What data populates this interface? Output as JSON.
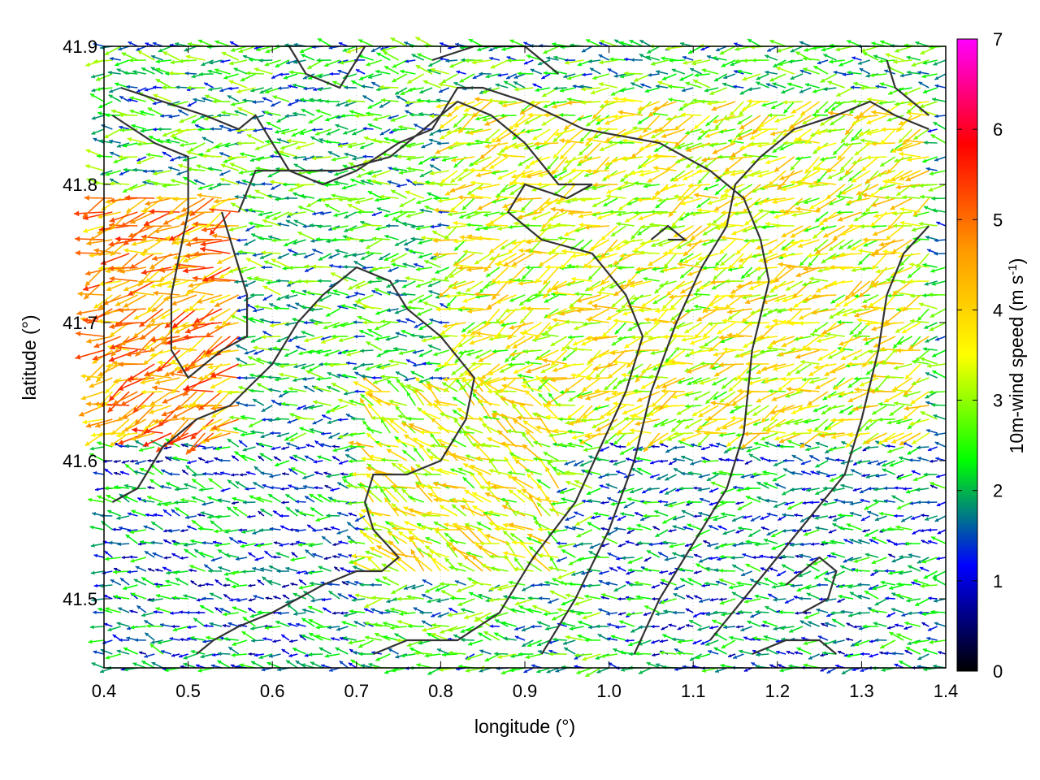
{
  "chart_data": {
    "type": "vector_field",
    "xlabel": "longitude (°)",
    "ylabel": "latitude (°)",
    "xlim": [
      0.4,
      1.4
    ],
    "ylim": [
      41.45,
      41.9
    ],
    "xticks": [
      "0.4",
      "0.5",
      "0.6",
      "0.7",
      "0.8",
      "0.9",
      "1.0",
      "1.1",
      "1.2",
      "1.3",
      "1.4"
    ],
    "xtick_values": [
      0.4,
      0.5,
      0.6,
      0.7,
      0.8,
      0.9,
      1.0,
      1.1,
      1.2,
      1.3,
      1.4
    ],
    "yticks": [
      "41.5",
      "41.6",
      "41.7",
      "41.8",
      "41.9"
    ],
    "ytick_values": [
      41.5,
      41.6,
      41.7,
      41.8,
      41.9
    ],
    "grid": true,
    "colorbar": {
      "label_main": "10m-wind speed (m s",
      "label_sup": "-1",
      "label_end": ")",
      "range": [
        0,
        7
      ],
      "ticks": [
        "0",
        "1",
        "2",
        "3",
        "4",
        "5",
        "6",
        "7"
      ],
      "tick_values": [
        0,
        1,
        2,
        3,
        4,
        5,
        6,
        7
      ],
      "palette": [
        "#000000",
        "#0000ff",
        "#00ff00",
        "#ffff00",
        "#ff9900",
        "#ff0000",
        "#ff00ff"
      ]
    },
    "contour_color": "#333333",
    "contours": [
      [
        [
          0.42,
          41.87
        ],
        [
          0.47,
          41.86
        ],
        [
          0.52,
          41.85
        ],
        [
          0.56,
          41.84
        ],
        [
          0.58,
          41.85
        ],
        [
          0.6,
          41.83
        ],
        [
          0.62,
          41.81
        ],
        [
          0.66,
          41.8
        ],
        [
          0.7,
          41.81
        ],
        [
          0.75,
          41.83
        ],
        [
          0.79,
          41.84
        ],
        [
          0.82,
          41.87
        ],
        [
          0.85,
          41.87
        ],
        [
          0.9,
          41.86
        ],
        [
          0.97,
          41.84
        ],
        [
          1.06,
          41.83
        ],
        [
          1.12,
          41.81
        ],
        [
          1.16,
          41.79
        ],
        [
          1.18,
          41.76
        ],
        [
          1.19,
          41.73
        ],
        [
          1.17,
          41.68
        ],
        [
          1.16,
          41.62
        ],
        [
          1.14,
          41.58
        ],
        [
          1.1,
          41.54
        ],
        [
          1.06,
          41.5
        ],
        [
          1.03,
          41.46
        ]
      ],
      [
        [
          0.41,
          41.85
        ],
        [
          0.46,
          41.83
        ],
        [
          0.5,
          41.82
        ],
        [
          0.5,
          41.78
        ],
        [
          0.48,
          41.72
        ],
        [
          0.48,
          41.68
        ],
        [
          0.5,
          41.66
        ],
        [
          0.54,
          41.68
        ],
        [
          0.57,
          41.69
        ],
        [
          0.57,
          41.72
        ],
        [
          0.55,
          41.76
        ],
        [
          0.54,
          41.78
        ]
      ],
      [
        [
          0.56,
          41.78
        ],
        [
          0.58,
          41.81
        ],
        [
          0.62,
          41.81
        ],
        [
          0.68,
          41.81
        ],
        [
          0.74,
          41.82
        ],
        [
          0.78,
          41.84
        ],
        [
          0.82,
          41.86
        ],
        [
          0.86,
          41.85
        ],
        [
          0.9,
          41.83
        ],
        [
          0.94,
          41.8
        ],
        [
          0.98,
          41.8
        ],
        [
          0.95,
          41.79
        ],
        [
          0.9,
          41.8
        ],
        [
          0.88,
          41.78
        ],
        [
          0.92,
          41.76
        ],
        [
          0.98,
          41.75
        ],
        [
          1.02,
          41.72
        ],
        [
          1.04,
          41.69
        ],
        [
          1.02,
          41.65
        ],
        [
          0.99,
          41.61
        ],
        [
          0.96,
          41.57
        ],
        [
          0.91,
          41.53
        ],
        [
          0.87,
          41.49
        ],
        [
          0.82,
          41.47
        ],
        [
          0.76,
          41.47
        ],
        [
          0.72,
          41.46
        ]
      ],
      [
        [
          0.41,
          41.57
        ],
        [
          0.44,
          41.58
        ],
        [
          0.47,
          41.61
        ],
        [
          0.51,
          41.63
        ],
        [
          0.55,
          41.64
        ],
        [
          0.6,
          41.67
        ],
        [
          0.63,
          41.7
        ],
        [
          0.66,
          41.72
        ],
        [
          0.7,
          41.74
        ],
        [
          0.74,
          41.73
        ],
        [
          0.76,
          41.71
        ],
        [
          0.8,
          41.69
        ],
        [
          0.84,
          41.66
        ],
        [
          0.83,
          41.63
        ],
        [
          0.8,
          41.6
        ],
        [
          0.76,
          41.59
        ],
        [
          0.72,
          41.59
        ],
        [
          0.71,
          41.57
        ],
        [
          0.72,
          41.55
        ],
        [
          0.75,
          41.53
        ],
        [
          0.73,
          41.52
        ],
        [
          0.7,
          41.52
        ],
        [
          0.66,
          41.51
        ],
        [
          0.63,
          41.5
        ],
        [
          0.6,
          41.49
        ],
        [
          0.56,
          41.48
        ],
        [
          0.53,
          41.47
        ],
        [
          0.51,
          41.46
        ]
      ],
      [
        [
          0.92,
          41.46
        ],
        [
          0.96,
          41.5
        ],
        [
          1.0,
          41.55
        ],
        [
          1.03,
          41.6
        ],
        [
          1.05,
          41.65
        ],
        [
          1.08,
          41.7
        ],
        [
          1.11,
          41.74
        ],
        [
          1.14,
          41.77
        ],
        [
          1.15,
          41.8
        ],
        [
          1.18,
          41.82
        ],
        [
          1.22,
          41.84
        ],
        [
          1.27,
          41.85
        ],
        [
          1.31,
          41.86
        ],
        [
          1.34,
          41.85
        ],
        [
          1.38,
          41.84
        ]
      ],
      [
        [
          1.12,
          41.47
        ],
        [
          1.16,
          41.5
        ],
        [
          1.2,
          41.53
        ],
        [
          1.24,
          41.56
        ],
        [
          1.28,
          41.59
        ],
        [
          1.3,
          41.63
        ],
        [
          1.32,
          41.68
        ],
        [
          1.33,
          41.72
        ],
        [
          1.35,
          41.75
        ],
        [
          1.38,
          41.77
        ]
      ],
      [
        [
          1.21,
          41.51
        ],
        [
          1.25,
          41.53
        ],
        [
          1.27,
          41.52
        ],
        [
          1.26,
          41.5
        ],
        [
          1.23,
          41.49
        ]
      ],
      [
        [
          1.33,
          41.89
        ],
        [
          1.34,
          41.87
        ],
        [
          1.38,
          41.85
        ]
      ],
      [
        [
          0.62,
          41.9
        ],
        [
          0.64,
          41.88
        ],
        [
          0.68,
          41.87
        ],
        [
          0.71,
          41.9
        ]
      ],
      [
        [
          0.79,
          41.89
        ],
        [
          0.84,
          41.9
        ],
        [
          0.9,
          41.9
        ],
        [
          0.94,
          41.88
        ]
      ],
      [
        [
          1.05,
          41.76
        ],
        [
          1.07,
          41.77
        ],
        [
          1.09,
          41.76
        ],
        [
          1.07,
          41.76
        ]
      ],
      [
        [
          1.17,
          41.46
        ],
        [
          1.21,
          41.47
        ],
        [
          1.25,
          41.47
        ],
        [
          1.27,
          41.46
        ]
      ]
    ],
    "vector_field": {
      "dx": 0.01,
      "dy": 0.01,
      "x_range": [
        0.4,
        1.4
      ],
      "y_range": [
        41.45,
        41.9
      ],
      "mean_direction_deg": 180,
      "regions": [
        {
          "x": [
            0.4,
            0.57
          ],
          "y": [
            41.62,
            41.8
          ],
          "speed": 4.6,
          "direction_deg": 200
        },
        {
          "x": [
            0.57,
            1.1
          ],
          "y": [
            41.68,
            41.82
          ],
          "speed": 2.3,
          "direction_deg": 180
        },
        {
          "x": [
            0.82,
            1.38
          ],
          "y": [
            41.62,
            41.86
          ],
          "speed": 3.4,
          "direction_deg": 200
        },
        {
          "x": [
            0.72,
            0.95
          ],
          "y": [
            41.52,
            41.66
          ],
          "speed": 3.4,
          "direction_deg": 150
        },
        {
          "x": [
            0.4,
            0.7
          ],
          "y": [
            41.45,
            41.62
          ],
          "speed": 1.6,
          "direction_deg": 170
        },
        {
          "x": [
            1.0,
            1.4
          ],
          "y": [
            41.45,
            41.62
          ],
          "speed": 1.7,
          "direction_deg": 180
        }
      ],
      "default_speed": 2.2
    }
  }
}
